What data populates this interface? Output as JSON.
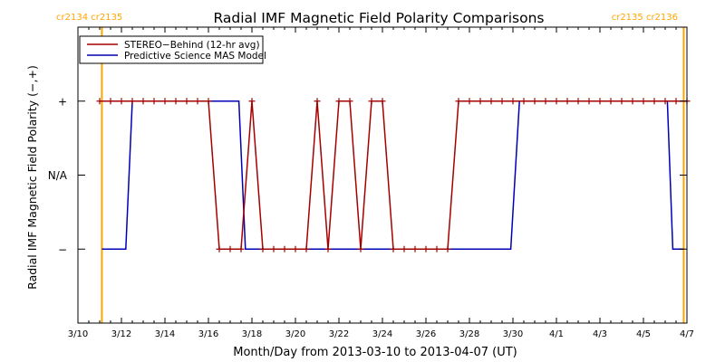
{
  "chart_data": {
    "type": "line",
    "title": "Radial IMF Magnetic Field Polarity Comparisons",
    "xlabel": "Month/Day from 2013-03-10 to 2013-04-07 (UT)",
    "ylabel": "Radial IMF Magnetic Field Polarity (−,+)",
    "xlim": [
      0,
      28
    ],
    "ylim": [
      -2.0,
      2.0
    ],
    "x_ticks": [
      {
        "x": 0,
        "label": "3/10"
      },
      {
        "x": 2,
        "label": "3/12"
      },
      {
        "x": 4,
        "label": "3/14"
      },
      {
        "x": 6,
        "label": "3/16"
      },
      {
        "x": 8,
        "label": "3/18"
      },
      {
        "x": 10,
        "label": "3/20"
      },
      {
        "x": 12,
        "label": "3/22"
      },
      {
        "x": 14,
        "label": "3/24"
      },
      {
        "x": 16,
        "label": "3/26"
      },
      {
        "x": 18,
        "label": "3/28"
      },
      {
        "x": 20,
        "label": "3/30"
      },
      {
        "x": 22,
        "label": "4/1"
      },
      {
        "x": 24,
        "label": "4/3"
      },
      {
        "x": 26,
        "label": "4/5"
      },
      {
        "x": 28,
        "label": "4/7"
      }
    ],
    "y_ticks": [
      {
        "y": 1,
        "label": "+"
      },
      {
        "y": 0,
        "label": "N/A"
      },
      {
        "y": -1,
        "label": "−"
      }
    ],
    "rotation_markers": [
      {
        "x": 1.1,
        "label": "cr2134 cr2135",
        "anchor": "left"
      },
      {
        "x": 27.85,
        "label": "cr2135 cr2136",
        "anchor": "right"
      }
    ],
    "legend_position": "top-left",
    "series": [
      {
        "name": "STEREO−Behind (12-hr avg)",
        "color": "#a50000",
        "markers": true,
        "points": [
          [
            1.0,
            1
          ],
          [
            1.5,
            1
          ],
          [
            2.0,
            1
          ],
          [
            2.5,
            1
          ],
          [
            3.0,
            1
          ],
          [
            3.5,
            1
          ],
          [
            4.0,
            1
          ],
          [
            4.5,
            1
          ],
          [
            5.0,
            1
          ],
          [
            5.5,
            1
          ],
          [
            6.0,
            1
          ],
          [
            6.5,
            -1
          ],
          [
            7.0,
            -1
          ],
          [
            7.5,
            -1
          ],
          [
            8.0,
            1
          ],
          [
            8.5,
            -1
          ],
          [
            9.0,
            -1
          ],
          [
            9.5,
            -1
          ],
          [
            10.0,
            -1
          ],
          [
            10.5,
            -1
          ],
          [
            11.0,
            1
          ],
          [
            11.5,
            -1
          ],
          [
            12.0,
            1
          ],
          [
            12.5,
            1
          ],
          [
            13.0,
            -1
          ],
          [
            13.5,
            1
          ],
          [
            14.0,
            1
          ],
          [
            14.5,
            -1
          ],
          [
            15.0,
            -1
          ],
          [
            15.5,
            -1
          ],
          [
            16.0,
            -1
          ],
          [
            16.5,
            -1
          ],
          [
            17.0,
            -1
          ],
          [
            17.5,
            1
          ],
          [
            18.0,
            1
          ],
          [
            18.5,
            1
          ],
          [
            19.0,
            1
          ],
          [
            19.5,
            1
          ],
          [
            20.0,
            1
          ],
          [
            20.5,
            1
          ],
          [
            21.0,
            1
          ],
          [
            21.5,
            1
          ],
          [
            22.0,
            1
          ],
          [
            22.5,
            1
          ],
          [
            23.0,
            1
          ],
          [
            23.5,
            1
          ],
          [
            24.0,
            1
          ],
          [
            24.5,
            1
          ],
          [
            25.0,
            1
          ],
          [
            25.5,
            1
          ],
          [
            26.0,
            1
          ],
          [
            26.5,
            1
          ],
          [
            27.0,
            1
          ],
          [
            27.5,
            1
          ],
          [
            28.0,
            1
          ]
        ]
      },
      {
        "name": "Predictive Science MAS Model",
        "color": "#0000b4",
        "markers": false,
        "points": [
          [
            1.1,
            -1
          ],
          [
            2.2,
            -1
          ],
          [
            2.5,
            1
          ],
          [
            7.4,
            1
          ],
          [
            7.7,
            -1
          ],
          [
            19.9,
            -1
          ],
          [
            20.3,
            1
          ],
          [
            27.1,
            1
          ],
          [
            27.35,
            -1
          ],
          [
            27.85,
            -1
          ]
        ]
      }
    ]
  }
}
